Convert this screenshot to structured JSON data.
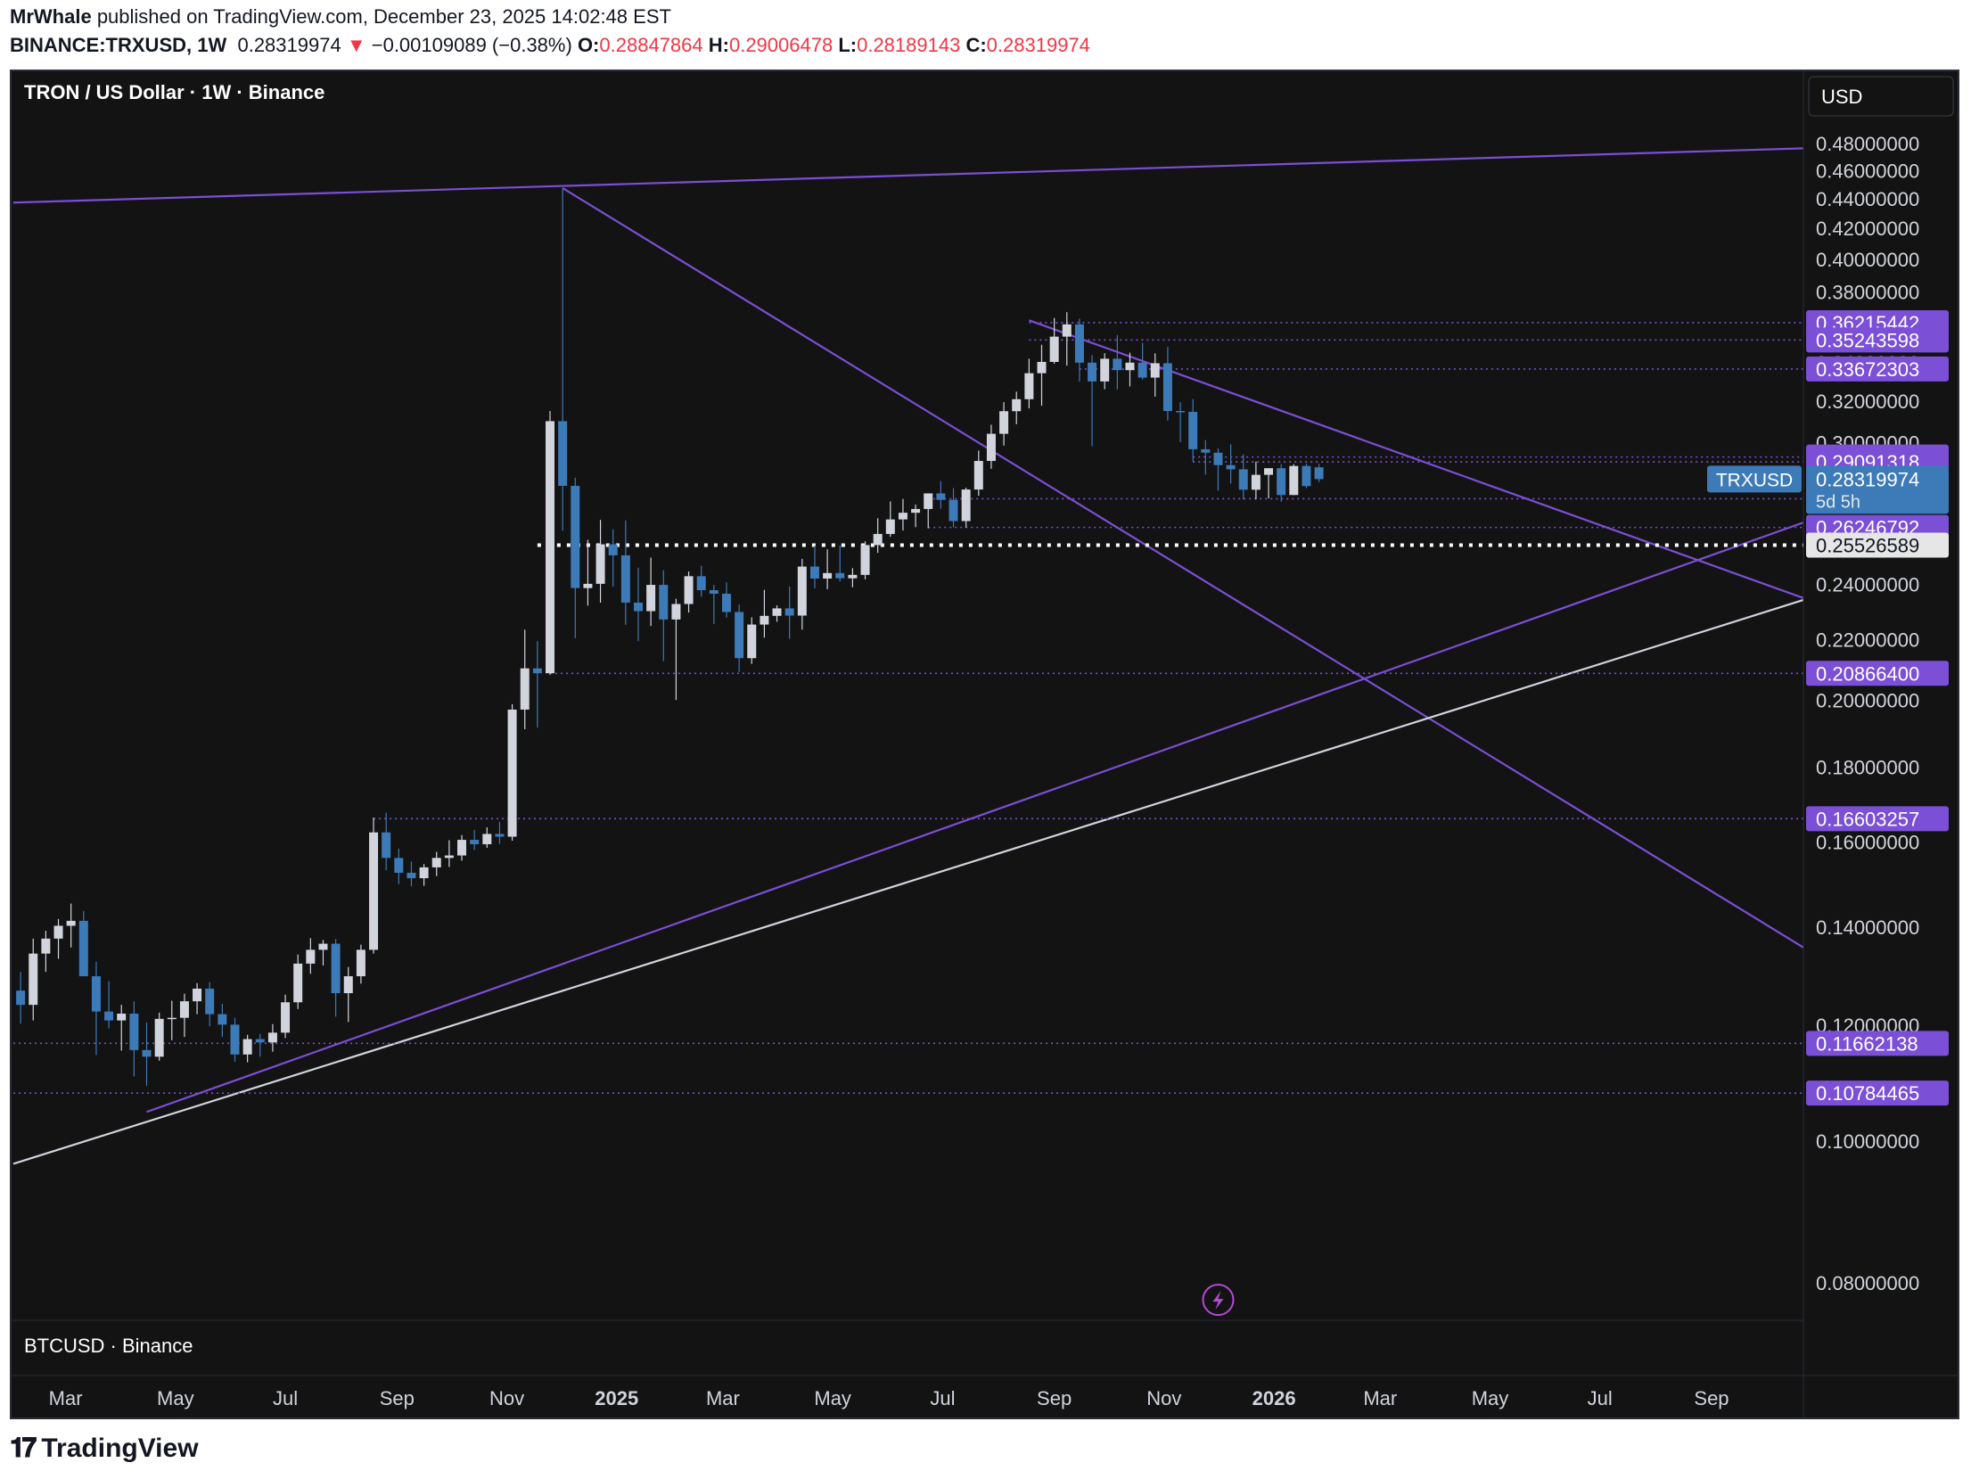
{
  "header": {
    "author": "MrWhale",
    "published": "published on TradingView.com, December 23, 2025 14:02:48 EST",
    "symbol": "BINANCE:TRXUSD, 1W",
    "last": "0.28319974",
    "arrow": "▼",
    "change": "−0.00109089 (−0.38%)",
    "o_label": "O:",
    "o_value": "0.28847864",
    "h_label": "H:",
    "h_value": "0.29006478",
    "l_label": "L:",
    "l_value": "0.28189143",
    "c_label": "C:",
    "c_value": "0.28319974"
  },
  "footer": {
    "brand": "TradingView",
    "logo_icon": "tradingview-logo-icon"
  },
  "colors": {
    "background": "#131313",
    "bull": "#d1d4dc",
    "bear": "#3d7ab8",
    "trendline": "#7b4fd6",
    "level": "#7b4fd6",
    "support": "#d1d4dc",
    "last_price": "#3d7ab8",
    "axis_text": "#d1d4dc",
    "grid_border": "#2a2e39"
  },
  "chart_data": {
    "type": "candlestick",
    "title": "TRON / US Dollar · 1W · Binance",
    "subpane_title": "BTCUSD · Binance",
    "currency_button": "USD",
    "symbol_tag": "TRXUSD",
    "countdown": "5d 5h",
    "scale": "log",
    "ylim": [
      0.0763,
      0.4895
    ],
    "xlim": [
      "2024-01-31",
      "2026-10-22"
    ],
    "y_ticks": [
      "0.48000000",
      "0.46000000",
      "0.44000000",
      "0.42000000",
      "0.40000000",
      "0.38000000",
      "0.36000000",
      "0.34000000",
      "0.32000000",
      "0.30000000",
      "0.28000000",
      "0.26000000",
      "0.24000000",
      "0.22000000",
      "0.20000000",
      "0.18000000",
      "0.16000000",
      "0.14000000",
      "0.12000000",
      "0.10000000",
      "0.08000000"
    ],
    "x_ticks": [
      {
        "label": "Mar",
        "date": "2024-03-01",
        "bold": false
      },
      {
        "label": "May",
        "date": "2024-05-01",
        "bold": false
      },
      {
        "label": "Jul",
        "date": "2024-07-01",
        "bold": false
      },
      {
        "label": "Sep",
        "date": "2024-09-01",
        "bold": false
      },
      {
        "label": "Nov",
        "date": "2024-11-01",
        "bold": false
      },
      {
        "label": "2025",
        "date": "2025-01-01",
        "bold": true
      },
      {
        "label": "Mar",
        "date": "2025-03-01",
        "bold": false
      },
      {
        "label": "May",
        "date": "2025-05-01",
        "bold": false
      },
      {
        "label": "Jul",
        "date": "2025-07-01",
        "bold": false
      },
      {
        "label": "Sep",
        "date": "2025-09-01",
        "bold": false
      },
      {
        "label": "Nov",
        "date": "2025-11-01",
        "bold": false
      },
      {
        "label": "2026",
        "date": "2026-01-01",
        "bold": true
      },
      {
        "label": "Mar",
        "date": "2026-03-01",
        "bold": false
      },
      {
        "label": "May",
        "date": "2026-05-01",
        "bold": false
      },
      {
        "label": "Jul",
        "date": "2026-07-01",
        "bold": false
      },
      {
        "label": "Sep",
        "date": "2026-09-01",
        "bold": false
      }
    ],
    "levels": [
      {
        "label": "0.36215442",
        "value": 0.36215442,
        "from": "2025-08-18",
        "style": "dotted"
      },
      {
        "label": "0.35243598",
        "value": 0.35243598,
        "from": "2025-08-18",
        "style": "dotted"
      },
      {
        "label": "0.33672303",
        "value": 0.33672303,
        "from": "2025-09-15",
        "style": "dotted"
      },
      {
        "label": "0.29319995",
        "value": 0.29319995,
        "from": "2025-11-17",
        "style": "dotted"
      },
      {
        "label": "0.29091318",
        "value": 0.29091318,
        "from": "2025-11-17",
        "style": "dotted"
      },
      {
        "label": "0.27458031",
        "value": 0.27458031,
        "from": "2025-06-23",
        "style": "dotted"
      },
      {
        "label": "0.26246792",
        "value": 0.26246792,
        "from": "2025-06-23",
        "style": "dotted"
      },
      {
        "label": "0.20866400",
        "value": 0.208664,
        "from": "2024-11-25",
        "style": "dotted"
      },
      {
        "label": "0.16603257",
        "value": 0.16603257,
        "from": "2024-08-19",
        "style": "dotted"
      },
      {
        "label": "0.11662138",
        "value": 0.11662138,
        "from": "2024-02-01",
        "style": "dotted"
      },
      {
        "label": "0.10784465",
        "value": 0.10784465,
        "from": "2024-02-01",
        "style": "dotted"
      }
    ],
    "white_level": {
      "label": "0.25526589",
      "value": 0.25526589,
      "from": "2024-11-18"
    },
    "last_price": {
      "label": "0.28319974",
      "value": 0.28319974
    },
    "trendlines": [
      {
        "color": "purple",
        "p1": [
          "2024-02-01",
          0.4374
        ],
        "p2": [
          "2026-10-22",
          0.4764
        ]
      },
      {
        "color": "purple",
        "p1": [
          "2024-12-02",
          0.4475
        ],
        "p2": [
          "2026-10-22",
          0.1356
        ]
      },
      {
        "color": "purple",
        "p1": [
          "2025-08-18",
          0.3635
        ],
        "p2": [
          "2026-10-22",
          0.2349
        ]
      },
      {
        "color": "purple",
        "p1": [
          "2024-04-15",
          0.1047
        ],
        "p2": [
          "2026-10-22",
          0.2645
        ]
      },
      {
        "color": "white",
        "p1": [
          "2024-02-01",
          0.0965
        ],
        "p2": [
          "2026-10-22",
          0.2342
        ]
      }
    ],
    "candles": [
      {
        "t": "2024-02-05",
        "o": 0.1267,
        "h": 0.1305,
        "l": 0.1203,
        "c": 0.1239
      },
      {
        "t": "2024-02-12",
        "o": 0.1239,
        "h": 0.1375,
        "l": 0.1209,
        "c": 0.1343
      },
      {
        "t": "2024-02-19",
        "o": 0.1343,
        "h": 0.1392,
        "l": 0.1305,
        "c": 0.1375
      },
      {
        "t": "2024-02-26",
        "o": 0.1375,
        "h": 0.1418,
        "l": 0.1332,
        "c": 0.1403
      },
      {
        "t": "2024-03-04",
        "o": 0.1403,
        "h": 0.1453,
        "l": 0.1356,
        "c": 0.1414
      },
      {
        "t": "2024-03-11",
        "o": 0.1414,
        "h": 0.1436,
        "l": 0.1308,
        "c": 0.1296
      },
      {
        "t": "2024-03-18",
        "o": 0.1296,
        "h": 0.1326,
        "l": 0.1145,
        "c": 0.1226
      },
      {
        "t": "2024-03-25",
        "o": 0.1226,
        "h": 0.1286,
        "l": 0.1194,
        "c": 0.1209
      },
      {
        "t": "2024-04-01",
        "o": 0.1209,
        "h": 0.1239,
        "l": 0.1153,
        "c": 0.1222
      },
      {
        "t": "2024-04-08",
        "o": 0.1222,
        "h": 0.1246,
        "l": 0.1107,
        "c": 0.1154
      },
      {
        "t": "2024-04-15",
        "o": 0.1154,
        "h": 0.1205,
        "l": 0.1091,
        "c": 0.1142
      },
      {
        "t": "2024-04-22",
        "o": 0.1142,
        "h": 0.1224,
        "l": 0.1135,
        "c": 0.1212
      },
      {
        "t": "2024-04-29",
        "o": 0.1212,
        "h": 0.1247,
        "l": 0.1172,
        "c": 0.1214
      },
      {
        "t": "2024-05-06",
        "o": 0.1214,
        "h": 0.1261,
        "l": 0.1178,
        "c": 0.1246
      },
      {
        "t": "2024-05-13",
        "o": 0.1246,
        "h": 0.1282,
        "l": 0.1221,
        "c": 0.1271
      },
      {
        "t": "2024-05-20",
        "o": 0.1271,
        "h": 0.1284,
        "l": 0.1198,
        "c": 0.1221
      },
      {
        "t": "2024-05-27",
        "o": 0.1221,
        "h": 0.1241,
        "l": 0.1178,
        "c": 0.1201
      },
      {
        "t": "2024-06-03",
        "o": 0.1201,
        "h": 0.1214,
        "l": 0.1133,
        "c": 0.1146
      },
      {
        "t": "2024-06-10",
        "o": 0.1146,
        "h": 0.1182,
        "l": 0.1132,
        "c": 0.1174
      },
      {
        "t": "2024-06-17",
        "o": 0.1174,
        "h": 0.1184,
        "l": 0.1142,
        "c": 0.1168
      },
      {
        "t": "2024-06-24",
        "o": 0.1168,
        "h": 0.1202,
        "l": 0.1151,
        "c": 0.1186
      },
      {
        "t": "2024-07-01",
        "o": 0.1186,
        "h": 0.1259,
        "l": 0.1176,
        "c": 0.1244
      },
      {
        "t": "2024-07-08",
        "o": 0.1244,
        "h": 0.1341,
        "l": 0.1231,
        "c": 0.1322
      },
      {
        "t": "2024-07-15",
        "o": 0.1322,
        "h": 0.1376,
        "l": 0.1301,
        "c": 0.1351
      },
      {
        "t": "2024-07-22",
        "o": 0.1351,
        "h": 0.1372,
        "l": 0.1318,
        "c": 0.1364
      },
      {
        "t": "2024-07-29",
        "o": 0.1364,
        "h": 0.1374,
        "l": 0.1216,
        "c": 0.1262
      },
      {
        "t": "2024-08-05",
        "o": 0.1262,
        "h": 0.1315,
        "l": 0.1206,
        "c": 0.1296
      },
      {
        "t": "2024-08-12",
        "o": 0.1296,
        "h": 0.1362,
        "l": 0.1281,
        "c": 0.1351
      },
      {
        "t": "2024-08-19",
        "o": 0.1351,
        "h": 0.1663,
        "l": 0.1343,
        "c": 0.1625
      },
      {
        "t": "2024-08-26",
        "o": 0.1625,
        "h": 0.1676,
        "l": 0.1531,
        "c": 0.1561
      },
      {
        "t": "2024-09-02",
        "o": 0.1561,
        "h": 0.1584,
        "l": 0.1498,
        "c": 0.1525
      },
      {
        "t": "2024-09-09",
        "o": 0.1525,
        "h": 0.1552,
        "l": 0.1493,
        "c": 0.1512
      },
      {
        "t": "2024-09-16",
        "o": 0.1512,
        "h": 0.1546,
        "l": 0.1494,
        "c": 0.1538
      },
      {
        "t": "2024-09-23",
        "o": 0.1538,
        "h": 0.1576,
        "l": 0.1517,
        "c": 0.1561
      },
      {
        "t": "2024-09-30",
        "o": 0.1561,
        "h": 0.1605,
        "l": 0.1539,
        "c": 0.1567
      },
      {
        "t": "2024-10-07",
        "o": 0.1567,
        "h": 0.1618,
        "l": 0.1554,
        "c": 0.1606
      },
      {
        "t": "2024-10-14",
        "o": 0.1606,
        "h": 0.1631,
        "l": 0.1581,
        "c": 0.1595
      },
      {
        "t": "2024-10-21",
        "o": 0.1595,
        "h": 0.1638,
        "l": 0.1586,
        "c": 0.1621
      },
      {
        "t": "2024-10-28",
        "o": 0.1621,
        "h": 0.1652,
        "l": 0.1596,
        "c": 0.1614
      },
      {
        "t": "2024-11-04",
        "o": 0.1614,
        "h": 0.1988,
        "l": 0.1604,
        "c": 0.1971
      },
      {
        "t": "2024-11-11",
        "o": 0.1971,
        "h": 0.2235,
        "l": 0.1911,
        "c": 0.2103
      },
      {
        "t": "2024-11-18",
        "o": 0.2103,
        "h": 0.2195,
        "l": 0.1916,
        "c": 0.2087
      },
      {
        "t": "2024-11-25",
        "o": 0.2087,
        "h": 0.3152,
        "l": 0.2082,
        "c": 0.3102
      },
      {
        "t": "2024-12-02",
        "o": 0.3102,
        "h": 0.4475,
        "l": 0.2611,
        "c": 0.2802
      },
      {
        "t": "2024-12-09",
        "o": 0.2802,
        "h": 0.2838,
        "l": 0.2205,
        "c": 0.2386
      },
      {
        "t": "2024-12-16",
        "o": 0.2386,
        "h": 0.2574,
        "l": 0.2321,
        "c": 0.2402
      },
      {
        "t": "2024-12-23",
        "o": 0.2402,
        "h": 0.2656,
        "l": 0.2332,
        "c": 0.2556
      },
      {
        "t": "2024-12-30",
        "o": 0.2556,
        "h": 0.2617,
        "l": 0.2391,
        "c": 0.2512
      },
      {
        "t": "2025-01-06",
        "o": 0.2512,
        "h": 0.2654,
        "l": 0.2252,
        "c": 0.2332
      },
      {
        "t": "2025-01-13",
        "o": 0.2332,
        "h": 0.2464,
        "l": 0.2195,
        "c": 0.2301
      },
      {
        "t": "2025-01-20",
        "o": 0.2301,
        "h": 0.2503,
        "l": 0.2248,
        "c": 0.2398
      },
      {
        "t": "2025-01-27",
        "o": 0.2398,
        "h": 0.2454,
        "l": 0.2127,
        "c": 0.2271
      },
      {
        "t": "2025-02-03",
        "o": 0.2271,
        "h": 0.2346,
        "l": 0.2001,
        "c": 0.2327
      },
      {
        "t": "2025-02-10",
        "o": 0.2327,
        "h": 0.2449,
        "l": 0.2296,
        "c": 0.2431
      },
      {
        "t": "2025-02-17",
        "o": 0.2431,
        "h": 0.2471,
        "l": 0.2354,
        "c": 0.2378
      },
      {
        "t": "2025-02-24",
        "o": 0.2378,
        "h": 0.2398,
        "l": 0.2255,
        "c": 0.2365
      },
      {
        "t": "2025-03-03",
        "o": 0.2365,
        "h": 0.2408,
        "l": 0.2278,
        "c": 0.2298
      },
      {
        "t": "2025-03-10",
        "o": 0.2298,
        "h": 0.2325,
        "l": 0.2091,
        "c": 0.2137
      },
      {
        "t": "2025-03-17",
        "o": 0.2137,
        "h": 0.2279,
        "l": 0.2118,
        "c": 0.2253
      },
      {
        "t": "2025-03-24",
        "o": 0.2253,
        "h": 0.2379,
        "l": 0.2207,
        "c": 0.2284
      },
      {
        "t": "2025-03-31",
        "o": 0.2284,
        "h": 0.2322,
        "l": 0.2263,
        "c": 0.2311
      },
      {
        "t": "2025-04-07",
        "o": 0.2311,
        "h": 0.2392,
        "l": 0.2203,
        "c": 0.2285
      },
      {
        "t": "2025-04-14",
        "o": 0.2285,
        "h": 0.2498,
        "l": 0.2235,
        "c": 0.2468
      },
      {
        "t": "2025-04-21",
        "o": 0.2468,
        "h": 0.2551,
        "l": 0.2385,
        "c": 0.2422
      },
      {
        "t": "2025-04-28",
        "o": 0.2422,
        "h": 0.2536,
        "l": 0.2382,
        "c": 0.2443
      },
      {
        "t": "2025-05-05",
        "o": 0.2443,
        "h": 0.2551,
        "l": 0.2411,
        "c": 0.2423
      },
      {
        "t": "2025-05-12",
        "o": 0.2423,
        "h": 0.2462,
        "l": 0.2389,
        "c": 0.2436
      },
      {
        "t": "2025-05-19",
        "o": 0.2436,
        "h": 0.2568,
        "l": 0.2419,
        "c": 0.2553
      },
      {
        "t": "2025-05-26",
        "o": 0.2553,
        "h": 0.2663,
        "l": 0.2522,
        "c": 0.2598
      },
      {
        "t": "2025-06-02",
        "o": 0.2598,
        "h": 0.2734,
        "l": 0.2586,
        "c": 0.2658
      },
      {
        "t": "2025-06-09",
        "o": 0.2658,
        "h": 0.2745,
        "l": 0.2612,
        "c": 0.2686
      },
      {
        "t": "2025-06-16",
        "o": 0.2686,
        "h": 0.2721,
        "l": 0.2626,
        "c": 0.2702
      },
      {
        "t": "2025-06-23",
        "o": 0.2702,
        "h": 0.2762,
        "l": 0.2621,
        "c": 0.2769
      },
      {
        "t": "2025-06-30",
        "o": 0.2769,
        "h": 0.2823,
        "l": 0.2703,
        "c": 0.2741
      },
      {
        "t": "2025-07-07",
        "o": 0.2741,
        "h": 0.2792,
        "l": 0.2625,
        "c": 0.2651
      },
      {
        "t": "2025-07-14",
        "o": 0.2651,
        "h": 0.2794,
        "l": 0.2624,
        "c": 0.2786
      },
      {
        "t": "2025-07-21",
        "o": 0.2786,
        "h": 0.2962,
        "l": 0.2759,
        "c": 0.2914
      },
      {
        "t": "2025-07-28",
        "o": 0.2914,
        "h": 0.3085,
        "l": 0.2878,
        "c": 0.3041
      },
      {
        "t": "2025-08-04",
        "o": 0.3041,
        "h": 0.3196,
        "l": 0.2985,
        "c": 0.3151
      },
      {
        "t": "2025-08-11",
        "o": 0.3151,
        "h": 0.3249,
        "l": 0.3087,
        "c": 0.3211
      },
      {
        "t": "2025-08-18",
        "o": 0.3211,
        "h": 0.3422,
        "l": 0.3165,
        "c": 0.3345
      },
      {
        "t": "2025-08-25",
        "o": 0.3345,
        "h": 0.3498,
        "l": 0.3178,
        "c": 0.3405
      },
      {
        "t": "2025-09-01",
        "o": 0.3405,
        "h": 0.3648,
        "l": 0.3395,
        "c": 0.3543
      },
      {
        "t": "2025-09-08",
        "o": 0.3543,
        "h": 0.3682,
        "l": 0.3385,
        "c": 0.3612
      },
      {
        "t": "2025-09-15",
        "o": 0.3612,
        "h": 0.3645,
        "l": 0.3301,
        "c": 0.3401
      },
      {
        "t": "2025-09-22",
        "o": 0.3401,
        "h": 0.3442,
        "l": 0.2982,
        "c": 0.3302
      },
      {
        "t": "2025-09-29",
        "o": 0.3302,
        "h": 0.3452,
        "l": 0.3262,
        "c": 0.3422
      },
      {
        "t": "2025-10-06",
        "o": 0.3422,
        "h": 0.3552,
        "l": 0.3261,
        "c": 0.3361
      },
      {
        "t": "2025-10-13",
        "o": 0.3361,
        "h": 0.3455,
        "l": 0.3276,
        "c": 0.3401
      },
      {
        "t": "2025-10-20",
        "o": 0.3401,
        "h": 0.3508,
        "l": 0.3312,
        "c": 0.3322
      },
      {
        "t": "2025-10-27",
        "o": 0.3322,
        "h": 0.3451,
        "l": 0.3224,
        "c": 0.3398
      },
      {
        "t": "2025-11-03",
        "o": 0.3398,
        "h": 0.3487,
        "l": 0.3105,
        "c": 0.3152
      },
      {
        "t": "2025-11-10",
        "o": 0.3152,
        "h": 0.3196,
        "l": 0.3001,
        "c": 0.3148
      },
      {
        "t": "2025-11-17",
        "o": 0.3148,
        "h": 0.3212,
        "l": 0.2911,
        "c": 0.2968
      },
      {
        "t": "2025-11-24",
        "o": 0.2968,
        "h": 0.3011,
        "l": 0.2852,
        "c": 0.2952
      },
      {
        "t": "2025-12-01",
        "o": 0.2952,
        "h": 0.2973,
        "l": 0.2781,
        "c": 0.2895
      },
      {
        "t": "2025-12-08",
        "o": 0.2895,
        "h": 0.2991,
        "l": 0.2812,
        "c": 0.2876
      },
      {
        "t": "2025-12-15",
        "o": 0.2876,
        "h": 0.2944,
        "l": 0.2743,
        "c": 0.2785
      },
      {
        "t": "2025-12-22",
        "o": 0.2785,
        "h": 0.2911,
        "l": 0.2743,
        "c": 0.2851
      },
      {
        "t": "2025-12-29",
        "o": 0.2851,
        "h": 0.2877,
        "l": 0.2747,
        "c": 0.2881
      },
      {
        "t": "2026-01-05",
        "o": 0.2881,
        "h": 0.2899,
        "l": 0.2733,
        "c": 0.2762
      },
      {
        "t": "2026-01-12",
        "o": 0.2762,
        "h": 0.2899,
        "l": 0.2761,
        "c": 0.2891
      },
      {
        "t": "2026-01-19",
        "o": 0.2891,
        "h": 0.2901,
        "l": 0.2792,
        "c": 0.2801
      },
      {
        "t": "2026-01-26",
        "o": 0.2885,
        "h": 0.2901,
        "l": 0.2819,
        "c": 0.2832
      }
    ]
  }
}
